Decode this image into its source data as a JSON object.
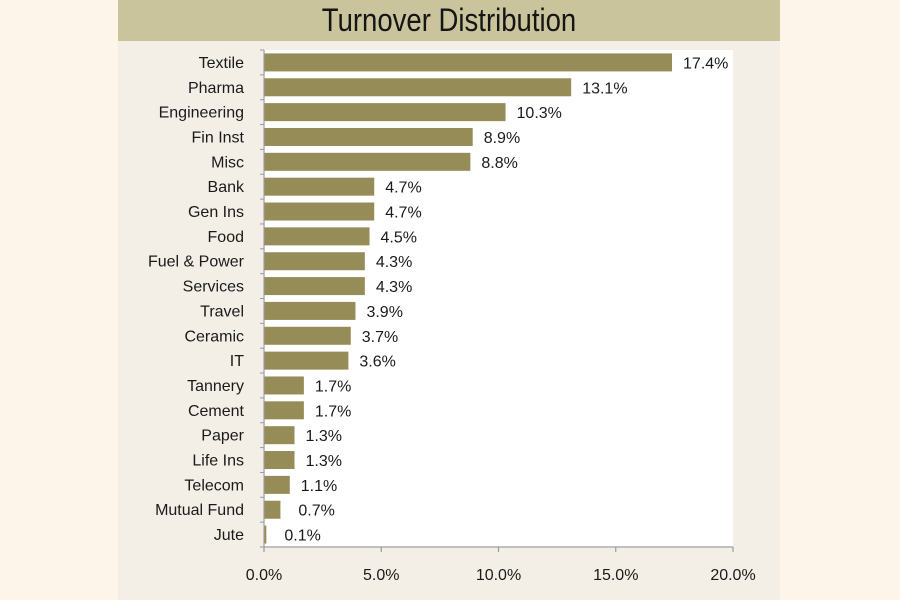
{
  "chart_data": {
    "type": "bar",
    "orientation": "horizontal",
    "title": "Turnover Distribution",
    "xlabel": "",
    "ylabel": "",
    "xlim": [
      0,
      20
    ],
    "x_ticks": [
      "0.0%",
      "5.0%",
      "10.0%",
      "15.0%",
      "20.0%"
    ],
    "x_tick_values": [
      0,
      5,
      10,
      15,
      20
    ],
    "grid": false,
    "legend": "none",
    "bar_color": "#958c57",
    "categories": [
      "Textile",
      "Pharma",
      "Engineering",
      "Fin Inst",
      "Misc",
      "Bank",
      "Gen Ins",
      "Food",
      "Fuel & Power",
      "Services",
      "Travel",
      "Ceramic",
      "IT",
      "Tannery",
      "Cement",
      "Paper",
      "Life Ins",
      "Telecom",
      "Mutual Fund",
      "Jute"
    ],
    "values": [
      17.4,
      13.1,
      10.3,
      8.9,
      8.8,
      4.7,
      4.7,
      4.5,
      4.3,
      4.3,
      3.9,
      3.7,
      3.6,
      1.7,
      1.7,
      1.3,
      1.3,
      1.1,
      0.7,
      0.1
    ],
    "value_labels": [
      "17.4%",
      "13.1%",
      "10.3%",
      "8.9%",
      "8.8%",
      "4.7%",
      "4.7%",
      "4.5%",
      "4.3%",
      "4.3%",
      "3.9%",
      "3.7%",
      "3.6%",
      "1.7%",
      "1.7%",
      "1.3%",
      "1.3%",
      "1.1%",
      "0.7%",
      "0.1%"
    ]
  }
}
